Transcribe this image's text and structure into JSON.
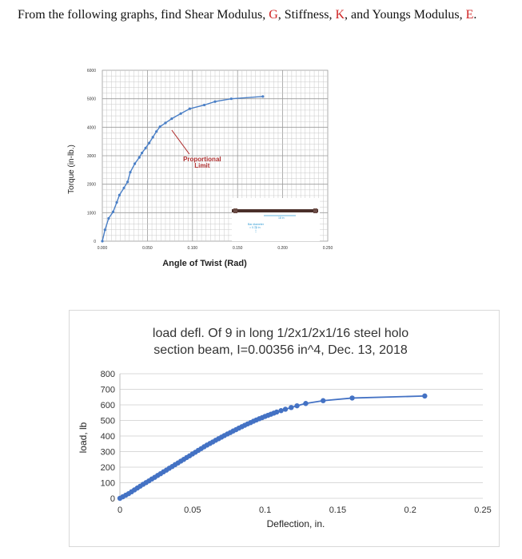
{
  "question": {
    "before_g": "From the following graphs, find Shear Modulus,",
    "g": "G",
    "before_k": ", Stiffness,",
    "k": "K",
    "before_e": ", and Youngs Modulus,",
    "e": "E",
    "end": "."
  },
  "chart_data": [
    {
      "type": "line",
      "title": "",
      "xlabel": "Angle of Twist (Rad)",
      "ylabel": "Torque (in-lb.)",
      "xlim": [
        0,
        0.25
      ],
      "ylim": [
        0,
        6000
      ],
      "x_ticks": [
        "0.000",
        "0.050",
        "0.100",
        "0.150",
        "0.200",
        "0.250"
      ],
      "y_ticks": [
        "0",
        "1000",
        "2000",
        "3000",
        "4000",
        "5000",
        "6000"
      ],
      "annotation": {
        "line1": "Proportional",
        "line2": "Limit",
        "x": 0.077,
        "y": 3900
      },
      "inset_labels": [
        "Bar diameter",
        "= 0.75 in",
        "18 in"
      ],
      "grid": true,
      "color": "#4a7fc6",
      "series": [
        {
          "x": [
            0.0,
            0.003,
            0.007,
            0.012,
            0.016,
            0.019,
            0.024,
            0.028,
            0.031,
            0.036,
            0.041,
            0.044,
            0.048,
            0.052,
            0.056,
            0.06,
            0.064,
            0.07,
            0.077,
            0.087,
            0.097,
            0.113,
            0.125,
            0.143,
            0.178
          ],
          "y": [
            0,
            400,
            800,
            1030,
            1360,
            1620,
            1870,
            2080,
            2420,
            2720,
            2940,
            3100,
            3270,
            3450,
            3650,
            3850,
            4020,
            4150,
            4300,
            4480,
            4650,
            4780,
            4900,
            5000,
            5080
          ]
        }
      ]
    },
    {
      "type": "scatter",
      "title_line1": "load defl. Of 9 in long 1/2x1/2x1/16 steel holo",
      "title_line2": "section beam, I=0.00356 in^4, Dec. 13, 2018",
      "xlabel": "Deflection, in.",
      "ylabel": "load, lb",
      "xlim": [
        0,
        0.25
      ],
      "ylim": [
        0,
        800
      ],
      "x_ticks": [
        "0",
        "0.05",
        "0.1",
        "0.15",
        "0.2",
        "0.25"
      ],
      "y_ticks": [
        "0",
        "100",
        "200",
        "300",
        "400",
        "500",
        "600",
        "700",
        "800"
      ],
      "grid": true,
      "color": "#4472c4",
      "series": [
        {
          "x": [
            0,
            0.002,
            0.004,
            0.006,
            0.008,
            0.01,
            0.012,
            0.014,
            0.016,
            0.018,
            0.02,
            0.022,
            0.024,
            0.026,
            0.028,
            0.03,
            0.032,
            0.034,
            0.036,
            0.038,
            0.04,
            0.042,
            0.044,
            0.046,
            0.048,
            0.05,
            0.052,
            0.054,
            0.056,
            0.058,
            0.06,
            0.062,
            0.064,
            0.066,
            0.068,
            0.07,
            0.072,
            0.074,
            0.076,
            0.078,
            0.08,
            0.082,
            0.084,
            0.086,
            0.088,
            0.09,
            0.092,
            0.094,
            0.096,
            0.098,
            0.1,
            0.102,
            0.104,
            0.106,
            0.108,
            0.111,
            0.114,
            0.118,
            0.122,
            0.128,
            0.14,
            0.16,
            0.21
          ],
          "y": [
            0,
            10,
            20,
            30,
            42,
            54,
            66,
            78,
            90,
            101,
            112,
            124,
            135,
            147,
            158,
            170,
            181,
            193,
            204,
            216,
            227,
            239,
            250,
            262,
            273,
            285,
            296,
            308,
            319,
            331,
            342,
            352,
            362,
            373,
            383,
            393,
            403,
            413,
            422,
            432,
            441,
            451,
            460,
            469,
            478,
            486,
            495,
            503,
            511,
            518,
            526,
            533,
            540,
            547,
            554,
            563,
            572,
            583,
            594,
            609,
            627,
            644,
            657
          ]
        }
      ]
    }
  ]
}
